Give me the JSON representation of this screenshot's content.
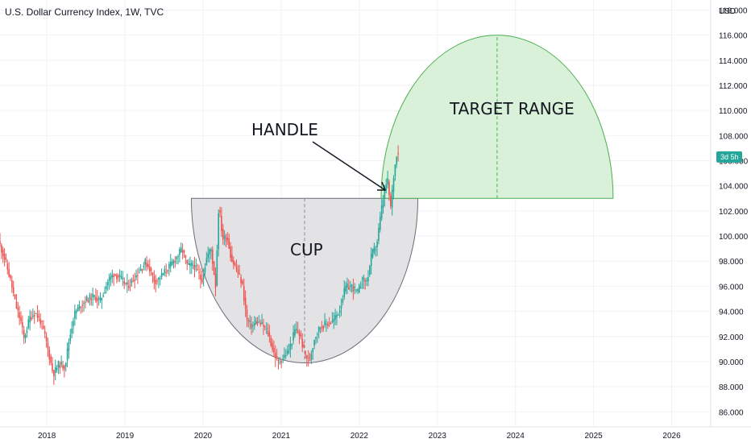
{
  "chart_data": {
    "type": "candlestick",
    "title": "U.S. Dollar Currency Index, 1W, TVC",
    "y_unit": "USD",
    "ylim": [
      84.8,
      118.8
    ],
    "xlim": [
      2017.4,
      2026.5
    ],
    "y_ticks": [
      "86.000",
      "88.000",
      "90.000",
      "92.000",
      "94.000",
      "96.000",
      "98.000",
      "100.000",
      "102.000",
      "104.000",
      "106.000",
      "108.000",
      "110.000",
      "112.000",
      "114.000",
      "116.000",
      "118.000"
    ],
    "x_ticks": [
      {
        "value": 2018,
        "label": "2018"
      },
      {
        "value": 2019,
        "label": "2019"
      },
      {
        "value": 2020,
        "label": "2020"
      },
      {
        "value": 2021,
        "label": "2021"
      },
      {
        "value": 2022,
        "label": "2022"
      },
      {
        "value": 2023,
        "label": "2023"
      },
      {
        "value": 2024,
        "label": "2024"
      },
      {
        "value": 2025,
        "label": "2025"
      },
      {
        "value": 2026,
        "label": "2026"
      }
    ],
    "price_badge": {
      "value": 106.3,
      "label": "3d 5h"
    },
    "colors": {
      "up": "#26a69a",
      "down": "#ef5350",
      "cup_fill": "#e3e3e6",
      "target_fill": "#d9f0d9",
      "target_stroke": "#4caf50",
      "badge": "#26a69a"
    },
    "path": [
      [
        2017.4,
        99.6
      ],
      [
        2017.48,
        98.2
      ],
      [
        2017.56,
        96.3
      ],
      [
        2017.62,
        94.5
      ],
      [
        2017.7,
        92.9
      ],
      [
        2017.72,
        91.7
      ],
      [
        2017.8,
        93.5
      ],
      [
        2017.87,
        93.9
      ],
      [
        2017.94,
        93.2
      ],
      [
        2018.0,
        91.9
      ],
      [
        2018.08,
        89.6
      ],
      [
        2018.1,
        89.0
      ],
      [
        2018.17,
        89.8
      ],
      [
        2018.25,
        89.6
      ],
      [
        2018.3,
        91.6
      ],
      [
        2018.37,
        93.8
      ],
      [
        2018.45,
        94.5
      ],
      [
        2018.52,
        94.9
      ],
      [
        2018.62,
        95.2
      ],
      [
        2018.7,
        94.8
      ],
      [
        2018.8,
        96.4
      ],
      [
        2018.87,
        97.0
      ],
      [
        2018.95,
        96.7
      ],
      [
        2019.05,
        96.0
      ],
      [
        2019.12,
        96.5
      ],
      [
        2019.2,
        97.2
      ],
      [
        2019.28,
        97.9
      ],
      [
        2019.33,
        97.5
      ],
      [
        2019.4,
        96.4
      ],
      [
        2019.45,
        96.6
      ],
      [
        2019.55,
        97.3
      ],
      [
        2019.62,
        97.8
      ],
      [
        2019.7,
        98.5
      ],
      [
        2019.75,
        99.0
      ],
      [
        2019.82,
        97.6
      ],
      [
        2019.9,
        97.7
      ],
      [
        2019.97,
        96.9
      ],
      [
        2020.0,
        96.4
      ],
      [
        2020.07,
        98.4
      ],
      [
        2020.12,
        99.0
      ],
      [
        2020.18,
        96.0
      ],
      [
        2020.22,
        102.5
      ],
      [
        2020.27,
        99.8
      ],
      [
        2020.33,
        99.9
      ],
      [
        2020.38,
        98.2
      ],
      [
        2020.45,
        97.3
      ],
      [
        2020.52,
        96.2
      ],
      [
        2020.58,
        93.3
      ],
      [
        2020.65,
        92.8
      ],
      [
        2020.7,
        93.2
      ],
      [
        2020.78,
        92.9
      ],
      [
        2020.85,
        92.3
      ],
      [
        2020.92,
        90.8
      ],
      [
        2020.98,
        89.9
      ],
      [
        2021.04,
        90.3
      ],
      [
        2021.12,
        90.9
      ],
      [
        2021.2,
        92.6
      ],
      [
        2021.26,
        92.1
      ],
      [
        2021.32,
        90.6
      ],
      [
        2021.38,
        90.0
      ],
      [
        2021.45,
        92.0
      ],
      [
        2021.52,
        92.8
      ],
      [
        2021.6,
        93.0
      ],
      [
        2021.68,
        93.2
      ],
      [
        2021.76,
        94.0
      ],
      [
        2021.84,
        95.9
      ],
      [
        2021.92,
        96.0
      ],
      [
        2022.0,
        95.5
      ],
      [
        2022.06,
        96.5
      ],
      [
        2022.12,
        96.4
      ],
      [
        2022.18,
        98.6
      ],
      [
        2022.24,
        99.2
      ],
      [
        2022.3,
        102.0
      ],
      [
        2022.34,
        103.5
      ],
      [
        2022.38,
        104.5
      ],
      [
        2022.42,
        102.2
      ],
      [
        2022.46,
        104.8
      ],
      [
        2022.5,
        106.7
      ]
    ]
  },
  "annotations": {
    "handle": "HANDLE",
    "cup": "CUP",
    "target": "TARGET RANGE"
  }
}
